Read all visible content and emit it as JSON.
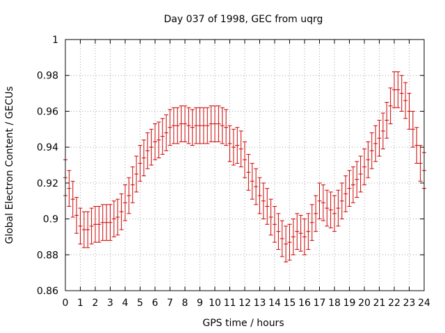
{
  "chart_data": {
    "type": "scatter",
    "title": "Day 037 of 1998, GEC from uqrg",
    "xlabel": "GPS time / hours",
    "ylabel": "Global Electron Content / GECUs",
    "xlim": [
      0,
      24
    ],
    "ylim": [
      0.86,
      1.0
    ],
    "grid": true,
    "x_ticks": [
      "0",
      "1",
      "2",
      "3",
      "4",
      "5",
      "6",
      "7",
      "8",
      "9",
      "10",
      "11",
      "12",
      "13",
      "14",
      "15",
      "16",
      "17",
      "18",
      "19",
      "20",
      "21",
      "22",
      "23",
      "24"
    ],
    "y_ticks": [
      "0.86",
      "0.88",
      "0.9",
      "0.92",
      "0.94",
      "0.96",
      "0.98",
      "1"
    ],
    "series": [
      {
        "name": "GEC",
        "color": "#cc0000",
        "error": 0.01,
        "points": [
          [
            0.0,
            0.923
          ],
          [
            0.25,
            0.917
          ],
          [
            0.5,
            0.911
          ],
          [
            0.75,
            0.902
          ],
          [
            1.0,
            0.896
          ],
          [
            1.25,
            0.894
          ],
          [
            1.5,
            0.894
          ],
          [
            1.75,
            0.896
          ],
          [
            2.0,
            0.897
          ],
          [
            2.25,
            0.897
          ],
          [
            2.5,
            0.898
          ],
          [
            2.75,
            0.898
          ],
          [
            3.0,
            0.898
          ],
          [
            3.25,
            0.9
          ],
          [
            3.5,
            0.901
          ],
          [
            3.75,
            0.904
          ],
          [
            4.0,
            0.909
          ],
          [
            4.25,
            0.913
          ],
          [
            4.5,
            0.919
          ],
          [
            4.75,
            0.925
          ],
          [
            5.0,
            0.931
          ],
          [
            5.25,
            0.934
          ],
          [
            5.5,
            0.938
          ],
          [
            5.75,
            0.94
          ],
          [
            6.0,
            0.943
          ],
          [
            6.25,
            0.944
          ],
          [
            6.5,
            0.946
          ],
          [
            6.75,
            0.948
          ],
          [
            7.0,
            0.951
          ],
          [
            7.25,
            0.952
          ],
          [
            7.5,
            0.952
          ],
          [
            7.75,
            0.953
          ],
          [
            8.0,
            0.953
          ],
          [
            8.25,
            0.952
          ],
          [
            8.5,
            0.951
          ],
          [
            8.75,
            0.952
          ],
          [
            9.0,
            0.952
          ],
          [
            9.25,
            0.952
          ],
          [
            9.5,
            0.952
          ],
          [
            9.75,
            0.953
          ],
          [
            10.0,
            0.953
          ],
          [
            10.25,
            0.953
          ],
          [
            10.5,
            0.952
          ],
          [
            10.75,
            0.951
          ],
          [
            11.0,
            0.942
          ],
          [
            11.25,
            0.94
          ],
          [
            11.5,
            0.941
          ],
          [
            11.75,
            0.939
          ],
          [
            12.0,
            0.933
          ],
          [
            12.25,
            0.926
          ],
          [
            12.5,
            0.921
          ],
          [
            12.75,
            0.918
          ],
          [
            13.0,
            0.913
          ],
          [
            13.25,
            0.91
          ],
          [
            13.5,
            0.907
          ],
          [
            13.75,
            0.901
          ],
          [
            14.0,
            0.897
          ],
          [
            14.25,
            0.893
          ],
          [
            14.5,
            0.889
          ],
          [
            14.75,
            0.886
          ],
          [
            15.0,
            0.887
          ],
          [
            15.25,
            0.89
          ],
          [
            15.5,
            0.893
          ],
          [
            15.75,
            0.892
          ],
          [
            16.0,
            0.89
          ],
          [
            16.25,
            0.893
          ],
          [
            16.5,
            0.898
          ],
          [
            16.75,
            0.903
          ],
          [
            17.0,
            0.91
          ],
          [
            17.25,
            0.909
          ],
          [
            17.5,
            0.906
          ],
          [
            17.75,
            0.905
          ],
          [
            18.0,
            0.903
          ],
          [
            18.25,
            0.906
          ],
          [
            18.5,
            0.91
          ],
          [
            18.75,
            0.914
          ],
          [
            19.0,
            0.917
          ],
          [
            19.25,
            0.919
          ],
          [
            19.5,
            0.922
          ],
          [
            19.75,
            0.925
          ],
          [
            20.0,
            0.929
          ],
          [
            20.25,
            0.933
          ],
          [
            20.5,
            0.938
          ],
          [
            20.75,
            0.942
          ],
          [
            21.0,
            0.945
          ],
          [
            21.25,
            0.949
          ],
          [
            21.5,
            0.955
          ],
          [
            21.75,
            0.963
          ],
          [
            22.0,
            0.972
          ],
          [
            22.25,
            0.972
          ],
          [
            22.5,
            0.97
          ],
          [
            22.75,
            0.966
          ],
          [
            23.0,
            0.96
          ],
          [
            23.25,
            0.95
          ],
          [
            23.5,
            0.941
          ],
          [
            23.75,
            0.931
          ],
          [
            24.0,
            0.927
          ]
        ]
      }
    ]
  }
}
